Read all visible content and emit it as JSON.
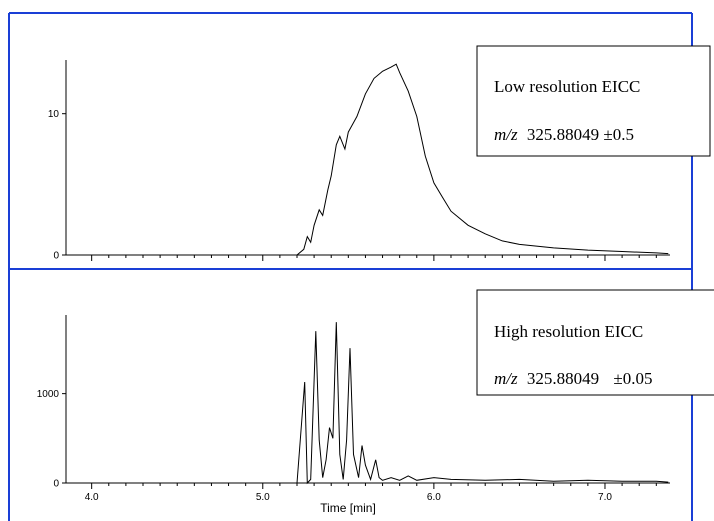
{
  "colors": {
    "frame": "#1a3fd6",
    "trace": "#000000",
    "box_border": "#000000"
  },
  "chart_data": [
    {
      "type": "line",
      "panel": "top",
      "legend_line1": "Low resolution EICC",
      "legend_line2_prefix": "m/z",
      "legend_line2_value": "325.88049",
      "legend_line2_tol": "±0.5",
      "xlim": [
        3.85,
        7.38
      ],
      "ylim": [
        0,
        13.8
      ],
      "yticks": [
        0,
        10
      ],
      "grid": false,
      "series": [
        {
          "x": [
            3.9,
            4.5,
            5.0,
            5.1,
            5.15,
            5.2,
            5.24,
            5.26,
            5.28,
            5.3,
            5.33,
            5.35,
            5.38,
            5.4,
            5.43,
            5.45,
            5.48,
            5.5,
            5.55,
            5.6,
            5.65,
            5.7,
            5.75,
            5.78,
            5.8,
            5.85,
            5.9,
            5.95,
            6.0,
            6.05,
            6.1,
            6.2,
            6.3,
            6.4,
            6.5,
            6.7,
            6.9,
            7.1,
            7.3,
            7.37
          ],
          "y": [
            0,
            0,
            0,
            0,
            0,
            0,
            0.4,
            1.3,
            0.9,
            2.1,
            3.2,
            2.8,
            4.6,
            5.6,
            7.8,
            8.4,
            7.5,
            8.7,
            9.8,
            11.4,
            12.5,
            13.0,
            13.3,
            13.5,
            12.9,
            11.6,
            9.8,
            7.0,
            5.1,
            4.1,
            3.1,
            2.1,
            1.5,
            1.0,
            0.75,
            0.5,
            0.35,
            0.25,
            0.15,
            0.1
          ]
        }
      ]
    },
    {
      "type": "line",
      "panel": "bottom",
      "legend_line1": "High resolution EICC",
      "legend_line2_prefix": "m/z",
      "legend_line2_value": "325.88049",
      "legend_line2_tol": "±0.05",
      "xlim": [
        3.85,
        7.38
      ],
      "ylim": [
        0,
        1880
      ],
      "yticks": [
        0,
        1000
      ],
      "xticks": [
        4.0,
        5.0,
        6.0,
        7.0
      ],
      "xtick_labels": [
        "4.0",
        "5.0",
        "6.0",
        "7.0"
      ],
      "xlabel": "Time [min]",
      "grid": false,
      "series": [
        {
          "x": [
            3.9,
            5.2,
            5.245,
            5.26,
            5.28,
            5.31,
            5.33,
            5.35,
            5.37,
            5.39,
            5.41,
            5.43,
            5.45,
            5.47,
            5.49,
            5.51,
            5.53,
            5.56,
            5.58,
            5.6,
            5.63,
            5.66,
            5.68,
            5.7,
            5.75,
            5.8,
            5.85,
            5.9,
            6.0,
            6.1,
            6.3,
            6.5,
            6.7,
            6.9,
            7.1,
            7.3,
            7.37
          ],
          "y": [
            0,
            0,
            1130,
            0,
            40,
            1700,
            480,
            60,
            260,
            620,
            500,
            1800,
            320,
            40,
            480,
            1510,
            320,
            60,
            420,
            200,
            40,
            260,
            60,
            30,
            60,
            30,
            80,
            30,
            60,
            40,
            30,
            40,
            20,
            30,
            20,
            20,
            10
          ]
        }
      ]
    }
  ]
}
